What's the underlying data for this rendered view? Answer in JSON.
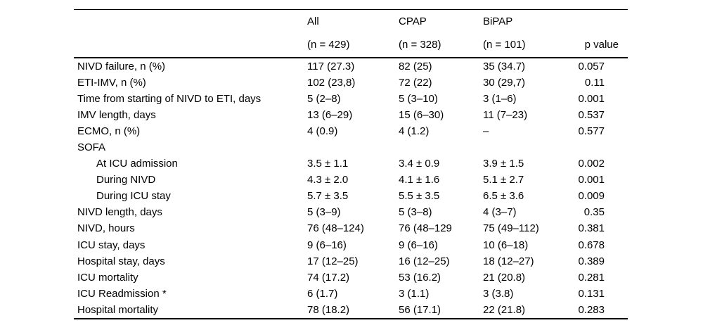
{
  "page": {
    "background": "#ffffff",
    "text_color": "#000000"
  },
  "table": {
    "header": {
      "groups": [
        {
          "line1": "All",
          "line2": "(n = 429)"
        },
        {
          "line1": "CPAP",
          "line2": "(n = 328)"
        },
        {
          "line1": "BiPAP",
          "line2": "(n = 101)"
        }
      ],
      "p_label": "p value"
    },
    "rows": [
      {
        "label": "NIVD failure, n (%)",
        "indent": false,
        "all": "117 (27.3)",
        "cpap": "82 (25)",
        "bipap": "35 (34.7)",
        "p": "0.057"
      },
      {
        "label": "ETI-IMV, n (%)",
        "indent": false,
        "all": "102 (23,8)",
        "cpap": "72 (22)",
        "bipap": "30 (29,7)",
        "p": "0.11"
      },
      {
        "label": "Time from starting of NIVD to ETI, days",
        "indent": false,
        "all": "5 (2–8)",
        "cpap": "5 (3–10)",
        "bipap": "3 (1–6)",
        "p": "0.001"
      },
      {
        "label": "IMV length, days",
        "indent": false,
        "all": "13 (6–29)",
        "cpap": "15 (6–30)",
        "bipap": "11 (7–23)",
        "p": "0.537"
      },
      {
        "label": "ECMO, n (%)",
        "indent": false,
        "all": "4 (0.9)",
        "cpap": "4 (1.2)",
        "bipap": "–",
        "p": "0.577"
      },
      {
        "label": "SOFA",
        "indent": false,
        "all": "",
        "cpap": "",
        "bipap": "",
        "p": ""
      },
      {
        "label": "At ICU admission",
        "indent": true,
        "all": "3.5 ± 1.1",
        "cpap": "3.4 ± 0.9",
        "bipap": "3.9 ± 1.5",
        "p": "0.002"
      },
      {
        "label": "During NIVD",
        "indent": true,
        "all": "4.3 ± 2.0",
        "cpap": "4.1 ± 1.6",
        "bipap": "5.1 ± 2.7",
        "p": "0.001"
      },
      {
        "label": "During ICU stay",
        "indent": true,
        "all": "5.7 ± 3.5",
        "cpap": "5.5 ± 3.5",
        "bipap": "6.5 ± 3.6",
        "p": "0.009"
      },
      {
        "label": "NIVD length, days",
        "indent": false,
        "all": "5 (3–9)",
        "cpap": "5 (3–8)",
        "bipap": "4 (3–7)",
        "p": "0.35"
      },
      {
        "label": "NIVD, hours",
        "indent": false,
        "all": "76 (48–124)",
        "cpap": "76 (48–129",
        "bipap": "75 (49–112)",
        "p": "0.381"
      },
      {
        "label": "ICU stay, days",
        "indent": false,
        "all": "9 (6–16)",
        "cpap": "9 (6–16)",
        "bipap": "10 (6–18)",
        "p": "0.678"
      },
      {
        "label": "Hospital stay, days",
        "indent": false,
        "all": "17 (12–25)",
        "cpap": "16 (12–25)",
        "bipap": "18 (12–27)",
        "p": "0.389"
      },
      {
        "label": "ICU mortality",
        "indent": false,
        "all": "74 (17.2)",
        "cpap": "53 (16.2)",
        "bipap": "21 (20.8)",
        "p": "0.281"
      },
      {
        "label": "ICU Readmission *",
        "indent": false,
        "all": "6 (1.7)",
        "cpap": "3 (1.1)",
        "bipap": "3 (3.8)",
        "p": "0.131"
      },
      {
        "label": "Hospital mortality",
        "indent": false,
        "all": "78 (18.2)",
        "cpap": "56 (17.1)",
        "bipap": "22 (21.8)",
        "p": "0.283"
      }
    ]
  }
}
